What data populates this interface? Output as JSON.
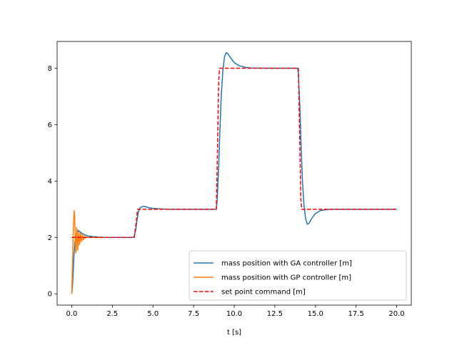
{
  "chart_data": {
    "type": "line",
    "title": "",
    "xlabel": "t [s]",
    "ylabel": "",
    "xlim": [
      -0.9,
      20.9
    ],
    "ylim": [
      -0.4,
      8.95
    ],
    "xticks": [
      0.0,
      2.5,
      5.0,
      7.5,
      10.0,
      12.5,
      15.0,
      17.5,
      20.0
    ],
    "xtick_labels": [
      "0.0",
      "2.5",
      "5.0",
      "7.5",
      "10.0",
      "12.5",
      "15.0",
      "17.5",
      "20.0"
    ],
    "yticks": [
      0,
      2,
      4,
      6,
      8
    ],
    "ytick_labels": [
      "0",
      "2",
      "4",
      "6",
      "8"
    ],
    "grid": false,
    "legend_position": "lower-right",
    "series": [
      {
        "name": "mass position with GA controller [m]",
        "color": "#1f77b4",
        "style": "solid",
        "x": [
          0,
          0.05,
          0.1,
          0.15,
          0.2,
          0.3,
          0.4,
          0.5,
          0.7,
          1.0,
          1.5,
          2.0,
          3.0,
          3.8,
          3.85,
          3.95,
          4.0,
          4.1,
          4.2,
          4.35,
          4.5,
          4.7,
          5.0,
          5.5,
          6.0,
          7.0,
          8.9,
          8.95,
          9.05,
          9.1,
          9.2,
          9.3,
          9.4,
          9.5,
          9.6,
          9.8,
          10.0,
          10.3,
          10.7,
          11.0,
          12.0,
          13.9,
          13.95,
          14.05,
          14.1,
          14.2,
          14.3,
          14.4,
          14.5,
          14.6,
          14.8,
          15.0,
          15.3,
          15.7,
          16.0,
          17.0,
          20.0
        ],
        "y": [
          0.0,
          0.3,
          0.9,
          1.5,
          1.85,
          2.15,
          2.25,
          2.2,
          2.12,
          2.05,
          2.02,
          2.0,
          2.0,
          2.0,
          2.05,
          2.3,
          2.55,
          2.9,
          3.05,
          3.1,
          3.1,
          3.06,
          3.03,
          3.01,
          3.0,
          3.0,
          3.0,
          3.3,
          4.6,
          5.5,
          7.0,
          7.9,
          8.4,
          8.55,
          8.52,
          8.35,
          8.2,
          8.09,
          8.03,
          8.01,
          8.0,
          8.0,
          7.8,
          6.5,
          5.5,
          4.0,
          3.1,
          2.65,
          2.47,
          2.5,
          2.7,
          2.85,
          2.95,
          2.99,
          3.0,
          3.0,
          3.0
        ]
      },
      {
        "name": "mass position with GP controller [m]",
        "color": "#ff7f0e",
        "style": "solid",
        "x": [
          0,
          0.05,
          0.1,
          0.15,
          0.18,
          0.21,
          0.24,
          0.27,
          0.3,
          0.33,
          0.36,
          0.39,
          0.42,
          0.45,
          0.48,
          0.51,
          0.54,
          0.57,
          0.6,
          0.63,
          0.66,
          0.69,
          0.72,
          0.75,
          0.8,
          0.85,
          0.9,
          1.0,
          1.2,
          1.5,
          2.0
        ],
        "y": [
          0.0,
          1.1,
          2.4,
          2.95,
          2.75,
          2.05,
          1.45,
          1.55,
          2.35,
          2.2,
          1.55,
          1.7,
          2.2,
          2.15,
          1.75,
          1.85,
          2.15,
          2.08,
          1.85,
          1.9,
          2.1,
          2.05,
          1.92,
          1.95,
          2.05,
          1.98,
          2.02,
          2.0,
          2.0,
          2.0,
          2.0
        ]
      },
      {
        "name": "set point command [m]",
        "color": "#ff0000",
        "style": "dashed",
        "x": [
          0,
          3.85,
          4.0,
          4.05,
          8.9,
          9.05,
          9.1,
          13.95,
          14.1,
          14.15,
          20.0
        ],
        "y": [
          2.0,
          2.0,
          2.7,
          3.0,
          3.0,
          7.6,
          8.0,
          8.0,
          3.4,
          3.0,
          3.0
        ]
      }
    ]
  }
}
